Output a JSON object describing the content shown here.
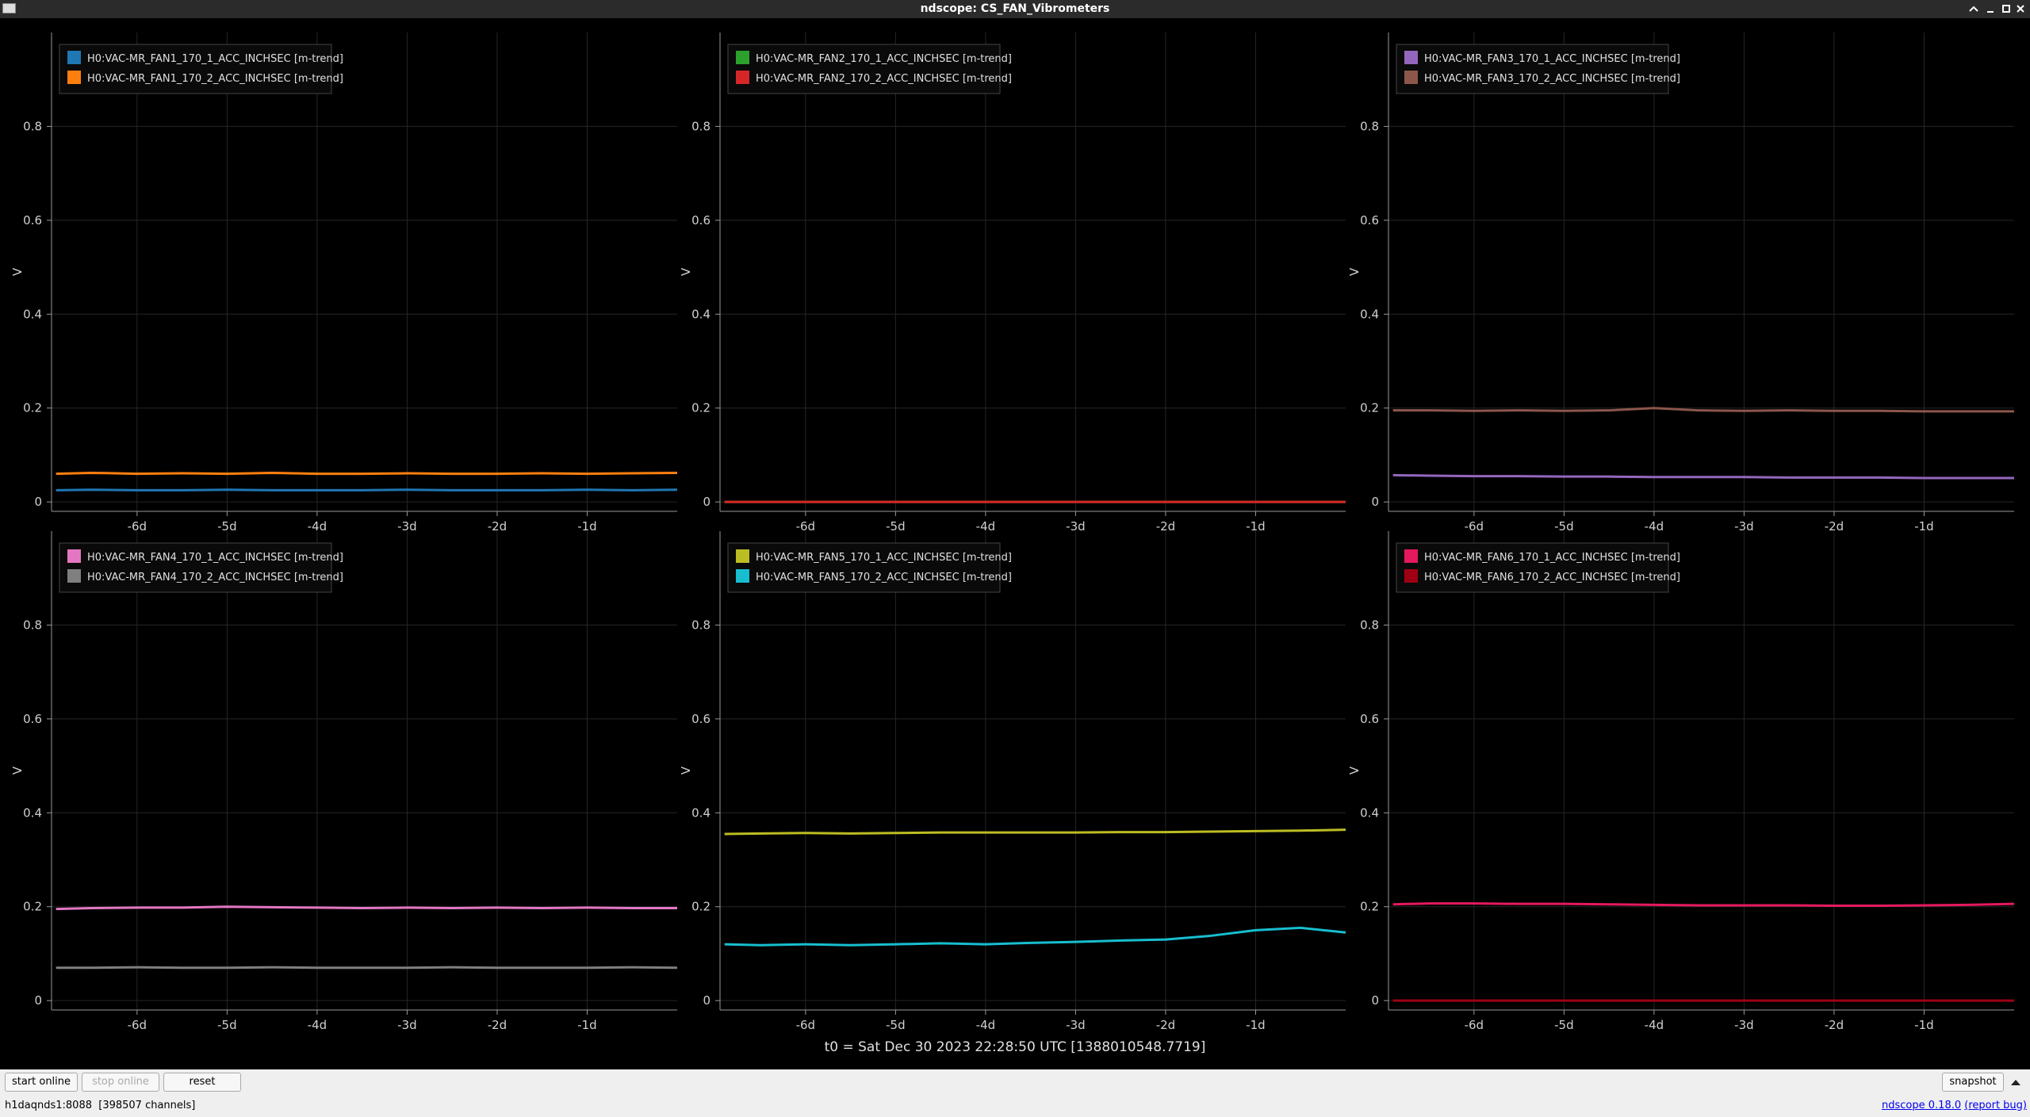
{
  "window": {
    "title": "ndscope: CS_FAN_Vibrometers"
  },
  "chart_data": [
    {
      "type": "line",
      "ylabel": "V",
      "legend": "upper left",
      "grid": true,
      "xlim": [
        -6.95,
        0
      ],
      "ylim": [
        -0.02,
        1.0
      ],
      "xticks": [
        {
          "value": -6,
          "label": "-6d"
        },
        {
          "value": -5,
          "label": "-5d"
        },
        {
          "value": -4,
          "label": "-4d"
        },
        {
          "value": -3,
          "label": "-3d"
        },
        {
          "value": -2,
          "label": "-2d"
        },
        {
          "value": -1,
          "label": "-1d"
        }
      ],
      "yticks": [
        0,
        0.2,
        0.4,
        0.6,
        0.8
      ],
      "x": [
        -6.9,
        -6.5,
        -6,
        -5.5,
        -5,
        -4.5,
        -4,
        -3.5,
        -3,
        -2.5,
        -2,
        -1.5,
        -1,
        -0.5,
        0
      ],
      "series": [
        {
          "name": "H0:VAC-MR_FAN1_170_1_ACC_INCHSEC [m-trend]",
          "color": "#1f77b4",
          "values": [
            0.025,
            0.026,
            0.025,
            0.025,
            0.026,
            0.025,
            0.025,
            0.025,
            0.026,
            0.025,
            0.025,
            0.025,
            0.026,
            0.025,
            0.026
          ]
        },
        {
          "name": "H0:VAC-MR_FAN1_170_2_ACC_INCHSEC [m-trend]",
          "color": "#ff7f0e",
          "values": [
            0.06,
            0.062,
            0.06,
            0.061,
            0.06,
            0.062,
            0.06,
            0.06,
            0.061,
            0.06,
            0.06,
            0.061,
            0.06,
            0.061,
            0.062
          ]
        }
      ]
    },
    {
      "type": "line",
      "ylabel": "V",
      "legend": "upper left",
      "grid": true,
      "xlim": [
        -6.95,
        0
      ],
      "ylim": [
        -0.02,
        1.0
      ],
      "xticks": [
        {
          "value": -6,
          "label": "-6d"
        },
        {
          "value": -5,
          "label": "-5d"
        },
        {
          "value": -4,
          "label": "-4d"
        },
        {
          "value": -3,
          "label": "-3d"
        },
        {
          "value": -2,
          "label": "-2d"
        },
        {
          "value": -1,
          "label": "-1d"
        }
      ],
      "yticks": [
        0,
        0.2,
        0.4,
        0.6,
        0.8
      ],
      "x": [
        -6.9,
        -6.5,
        -6,
        -5.5,
        -5,
        -4.5,
        -4,
        -3.5,
        -3,
        -2.5,
        -2,
        -1.5,
        -1,
        -0.5,
        0
      ],
      "series": [
        {
          "name": "H0:VAC-MR_FAN2_170_1_ACC_INCHSEC [m-trend]",
          "color": "#2ca02c",
          "values": [
            0,
            0,
            0,
            0,
            0,
            0,
            0,
            0,
            0,
            0,
            0,
            0,
            0,
            0,
            0
          ]
        },
        {
          "name": "H0:VAC-MR_FAN2_170_2_ACC_INCHSEC [m-trend]",
          "color": "#d62728",
          "values": [
            0,
            0,
            0,
            0,
            0,
            0,
            0,
            0,
            0,
            0,
            0,
            0,
            0,
            0,
            0
          ]
        }
      ]
    },
    {
      "type": "line",
      "ylabel": "V",
      "legend": "upper left",
      "grid": true,
      "xlim": [
        -6.95,
        0
      ],
      "ylim": [
        -0.02,
        1.0
      ],
      "xticks": [
        {
          "value": -6,
          "label": "-6d"
        },
        {
          "value": -5,
          "label": "-5d"
        },
        {
          "value": -4,
          "label": "-4d"
        },
        {
          "value": -3,
          "label": "-3d"
        },
        {
          "value": -2,
          "label": "-2d"
        },
        {
          "value": -1,
          "label": "-1d"
        }
      ],
      "yticks": [
        0,
        0.2,
        0.4,
        0.6,
        0.8
      ],
      "x": [
        -6.9,
        -6.5,
        -6,
        -5.5,
        -5,
        -4.5,
        -4,
        -3.5,
        -3,
        -2.5,
        -2,
        -1.5,
        -1,
        -0.5,
        0
      ],
      "series": [
        {
          "name": "H0:VAC-MR_FAN3_170_1_ACC_INCHSEC [m-trend]",
          "color": "#9467bd",
          "values": [
            0.057,
            0.056,
            0.055,
            0.055,
            0.054,
            0.054,
            0.053,
            0.053,
            0.053,
            0.052,
            0.052,
            0.052,
            0.051,
            0.051,
            0.051
          ]
        },
        {
          "name": "H0:VAC-MR_FAN3_170_2_ACC_INCHSEC [m-trend]",
          "color": "#8c564b",
          "values": [
            0.195,
            0.195,
            0.194,
            0.195,
            0.194,
            0.195,
            0.2,
            0.195,
            0.194,
            0.195,
            0.194,
            0.194,
            0.193,
            0.193,
            0.193
          ]
        }
      ]
    },
    {
      "type": "line",
      "ylabel": "V",
      "legend": "upper left",
      "grid": true,
      "xlim": [
        -6.95,
        0
      ],
      "ylim": [
        -0.02,
        1.0
      ],
      "xticks": [
        {
          "value": -6,
          "label": "-6d"
        },
        {
          "value": -5,
          "label": "-5d"
        },
        {
          "value": -4,
          "label": "-4d"
        },
        {
          "value": -3,
          "label": "-3d"
        },
        {
          "value": -2,
          "label": "-2d"
        },
        {
          "value": -1,
          "label": "-1d"
        }
      ],
      "yticks": [
        0,
        0.2,
        0.4,
        0.6,
        0.8
      ],
      "x": [
        -6.9,
        -6.5,
        -6,
        -5.5,
        -5,
        -4.5,
        -4,
        -3.5,
        -3,
        -2.5,
        -2,
        -1.5,
        -1,
        -0.5,
        0
      ],
      "series": [
        {
          "name": "H0:VAC-MR_FAN4_170_1_ACC_INCHSEC [m-trend]",
          "color": "#e377c2",
          "values": [
            0.195,
            0.197,
            0.198,
            0.198,
            0.2,
            0.199,
            0.198,
            0.197,
            0.198,
            0.197,
            0.198,
            0.197,
            0.198,
            0.197,
            0.197
          ]
        },
        {
          "name": "H0:VAC-MR_FAN4_170_2_ACC_INCHSEC [m-trend]",
          "color": "#7f7f7f",
          "values": [
            0.07,
            0.07,
            0.071,
            0.07,
            0.07,
            0.071,
            0.07,
            0.07,
            0.07,
            0.071,
            0.07,
            0.07,
            0.07,
            0.071,
            0.07
          ]
        }
      ]
    },
    {
      "type": "line",
      "ylabel": "V",
      "legend": "upper left",
      "grid": true,
      "xlim": [
        -6.95,
        0
      ],
      "ylim": [
        -0.02,
        1.0
      ],
      "xticks": [
        {
          "value": -6,
          "label": "-6d"
        },
        {
          "value": -5,
          "label": "-5d"
        },
        {
          "value": -4,
          "label": "-4d"
        },
        {
          "value": -3,
          "label": "-3d"
        },
        {
          "value": -2,
          "label": "-2d"
        },
        {
          "value": -1,
          "label": "-1d"
        }
      ],
      "yticks": [
        0,
        0.2,
        0.4,
        0.6,
        0.8
      ],
      "x": [
        -6.9,
        -6.5,
        -6,
        -5.5,
        -5,
        -4.5,
        -4,
        -3.5,
        -3,
        -2.5,
        -2,
        -1.5,
        -1,
        -0.5,
        0
      ],
      "series": [
        {
          "name": "H0:VAC-MR_FAN5_170_1_ACC_INCHSEC [m-trend]",
          "color": "#bcbd22",
          "values": [
            0.355,
            0.356,
            0.357,
            0.356,
            0.357,
            0.358,
            0.358,
            0.358,
            0.358,
            0.359,
            0.359,
            0.36,
            0.361,
            0.362,
            0.364
          ]
        },
        {
          "name": "H0:VAC-MR_FAN5_170_2_ACC_INCHSEC [m-trend]",
          "color": "#17becf",
          "values": [
            0.12,
            0.118,
            0.12,
            0.118,
            0.12,
            0.122,
            0.12,
            0.123,
            0.125,
            0.128,
            0.13,
            0.138,
            0.15,
            0.155,
            0.145
          ]
        }
      ]
    },
    {
      "type": "line",
      "ylabel": "V",
      "legend": "upper left",
      "grid": true,
      "xlim": [
        -6.95,
        0
      ],
      "ylim": [
        -0.02,
        1.0
      ],
      "xticks": [
        {
          "value": -6,
          "label": "-6d"
        },
        {
          "value": -5,
          "label": "-5d"
        },
        {
          "value": -4,
          "label": "-4d"
        },
        {
          "value": -3,
          "label": "-3d"
        },
        {
          "value": -2,
          "label": "-2d"
        },
        {
          "value": -1,
          "label": "-1d"
        }
      ],
      "yticks": [
        0,
        0.2,
        0.4,
        0.6,
        0.8
      ],
      "x": [
        -6.9,
        -6.5,
        -6,
        -5.5,
        -5,
        -4.5,
        -4,
        -3.5,
        -3,
        -2.5,
        -2,
        -1.5,
        -1,
        -0.5,
        0
      ],
      "series": [
        {
          "name": "H0:VAC-MR_FAN6_170_1_ACC_INCHSEC [m-trend]",
          "color": "#e6195e",
          "values": [
            0.205,
            0.207,
            0.207,
            0.206,
            0.206,
            0.205,
            0.204,
            0.203,
            0.203,
            0.203,
            0.202,
            0.202,
            0.203,
            0.204,
            0.206
          ]
        },
        {
          "name": "H0:VAC-MR_FAN6_170_2_ACC_INCHSEC [m-trend]",
          "color": "#a00014",
          "values": [
            0,
            0,
            0,
            0,
            0,
            0,
            0,
            0,
            0,
            0,
            0,
            0,
            0,
            0,
            0
          ]
        }
      ]
    }
  ],
  "t0": "t0 = Sat Dec 30 2023 22:28:50 UTC [1388010548.7719]",
  "buttons": [
    "start online",
    "stop online",
    "reset",
    "snapshot"
  ],
  "status": {
    "server": "h1daqnds1:8088  [398507 channels]",
    "version": "ndscope 0.18.0",
    "report": "(report bug)"
  }
}
